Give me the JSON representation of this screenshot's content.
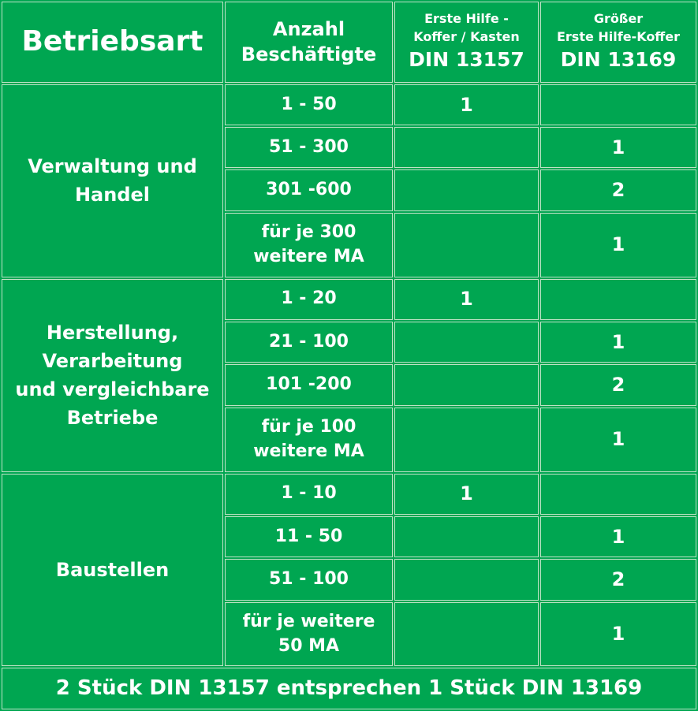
{
  "header": {
    "col1": "Betriebsart",
    "col2_line1": "Anzahl",
    "col2_line2": "Beschäftigte",
    "col3_line1": "Erste Hilfe -",
    "col3_line2": "Koffer / Kasten",
    "col3_din": "DIN 13157",
    "col4_line1": "Größer",
    "col4_line2": "Erste Hilfe-Koffer",
    "col4_din": "DIN 13169"
  },
  "groups": [
    {
      "name_lines": [
        "Verwaltung und",
        "Handel"
      ],
      "rows": [
        {
          "employees": [
            "1 - 50"
          ],
          "din13157": "1",
          "din13169": ""
        },
        {
          "employees": [
            "51 - 300"
          ],
          "din13157": "",
          "din13169": "1"
        },
        {
          "employees": [
            "301 -600"
          ],
          "din13157": "",
          "din13169": "2"
        },
        {
          "employees": [
            "für je 300",
            "weitere MA"
          ],
          "din13157": "",
          "din13169": "1"
        }
      ]
    },
    {
      "name_lines": [
        "Herstellung,",
        "Verarbeitung",
        "und vergleichbare",
        "Betriebe"
      ],
      "rows": [
        {
          "employees": [
            "1 - 20"
          ],
          "din13157": "1",
          "din13169": ""
        },
        {
          "employees": [
            "21 - 100"
          ],
          "din13157": "",
          "din13169": "1"
        },
        {
          "employees": [
            "101 -200"
          ],
          "din13157": "",
          "din13169": "2"
        },
        {
          "employees": [
            "für je 100",
            "weitere MA"
          ],
          "din13157": "",
          "din13169": "1"
        }
      ]
    },
    {
      "name_lines": [
        "Baustellen"
      ],
      "rows": [
        {
          "employees": [
            "1 - 10"
          ],
          "din13157": "1",
          "din13169": ""
        },
        {
          "employees": [
            "11 - 50"
          ],
          "din13157": "",
          "din13169": "1"
        },
        {
          "employees": [
            "51 - 100"
          ],
          "din13157": "",
          "din13169": "2"
        },
        {
          "employees": [
            "für je weitere",
            "50 MA"
          ],
          "din13157": "",
          "din13169": "1"
        }
      ]
    }
  ],
  "footer": "2 Stück DIN 13157 entsprechen 1 Stück DIN 13169",
  "colors": {
    "background": "#00a651",
    "text": "#ffffff",
    "border": "#bfe3c7"
  }
}
